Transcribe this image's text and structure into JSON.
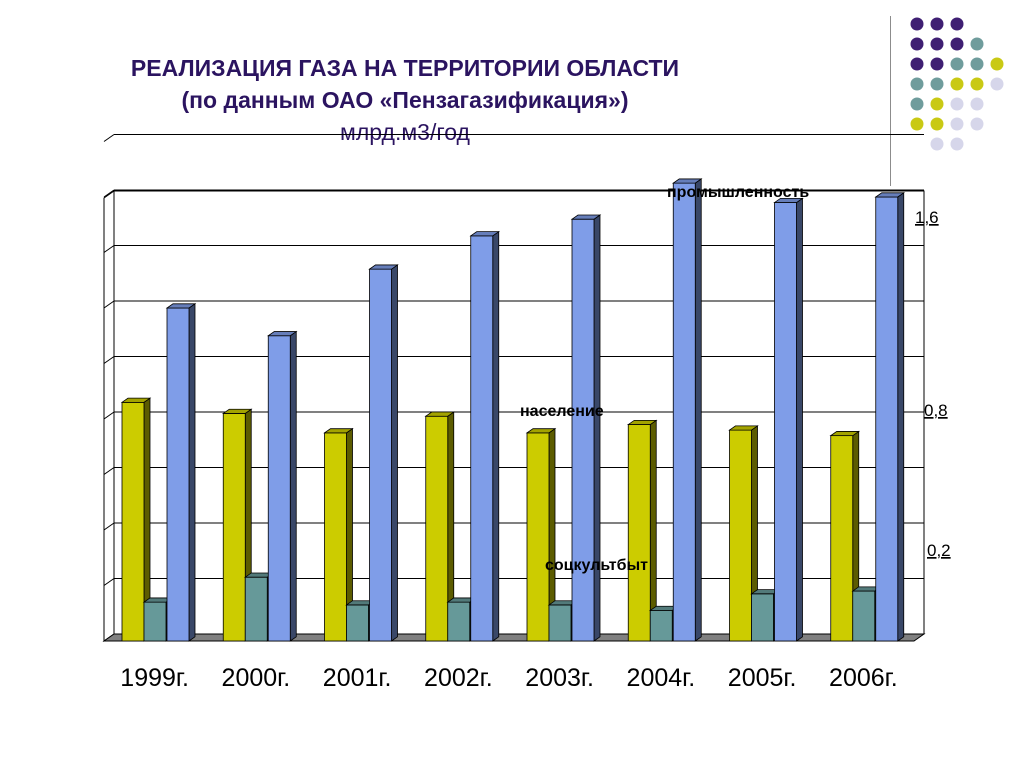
{
  "title": {
    "line1": "РЕАЛИЗАЦИЯ ГАЗА НА ТЕРРИТОРИИ ОБЛАСТИ",
    "line2": "(по данным ОАО «Пензагазификация»)",
    "line3": "млрд.м3/год"
  },
  "colors": {
    "title": "#2b1460",
    "naselenie": "#cccc00",
    "sockultbyt": "#669999",
    "promyshlennost": "#7f9de8",
    "dot_purple": "#3f1f73",
    "dot_teal": "#6f9c9c",
    "dot_yellow": "#c9c914",
    "dot_lavender": "#d6d6ea"
  },
  "decoration": {
    "dot_rows": [
      [
        "purple",
        "purple",
        "purple"
      ],
      [
        "purple",
        "purple",
        "purple",
        "teal"
      ],
      [
        "purple",
        "purple",
        "teal",
        "teal",
        "yellow"
      ],
      [
        "teal",
        "teal",
        "yellow",
        "yellow",
        "lavender"
      ],
      [
        "teal",
        "yellow",
        "lavender",
        "lavender"
      ],
      [
        "yellow",
        "yellow",
        "lavender",
        "lavender"
      ],
      [
        "lavender",
        "lavender"
      ]
    ]
  },
  "chart_data": {
    "type": "bar",
    "categories": [
      "1999г.",
      "2000г.",
      "2001г.",
      "2002г.",
      "2003г.",
      "2004г.",
      "2005г.",
      "2006г."
    ],
    "series": [
      {
        "key": "naselenie",
        "values": [
          0.86,
          0.82,
          0.75,
          0.81,
          0.75,
          0.78,
          0.76,
          0.74
        ]
      },
      {
        "key": "sockultbyt",
        "values": [
          0.14,
          0.23,
          0.13,
          0.14,
          0.13,
          0.11,
          0.17,
          0.18
        ]
      },
      {
        "key": "promyshlennost",
        "values": [
          1.2,
          1.1,
          1.34,
          1.46,
          1.52,
          1.65,
          1.58,
          1.6
        ]
      }
    ],
    "annotations": [
      {
        "text": "промышленность",
        "series": "promyshlennost"
      },
      {
        "text": "население",
        "series": "naselenie"
      },
      {
        "text": "соцкультбыт",
        "series": "sockultbyt"
      }
    ],
    "value_labels": [
      "1,6",
      "0,8",
      "0,2"
    ],
    "ylim": [
      0,
      1.8
    ],
    "grid": true,
    "legend": "none",
    "xlabel": "",
    "ylabel": ""
  }
}
